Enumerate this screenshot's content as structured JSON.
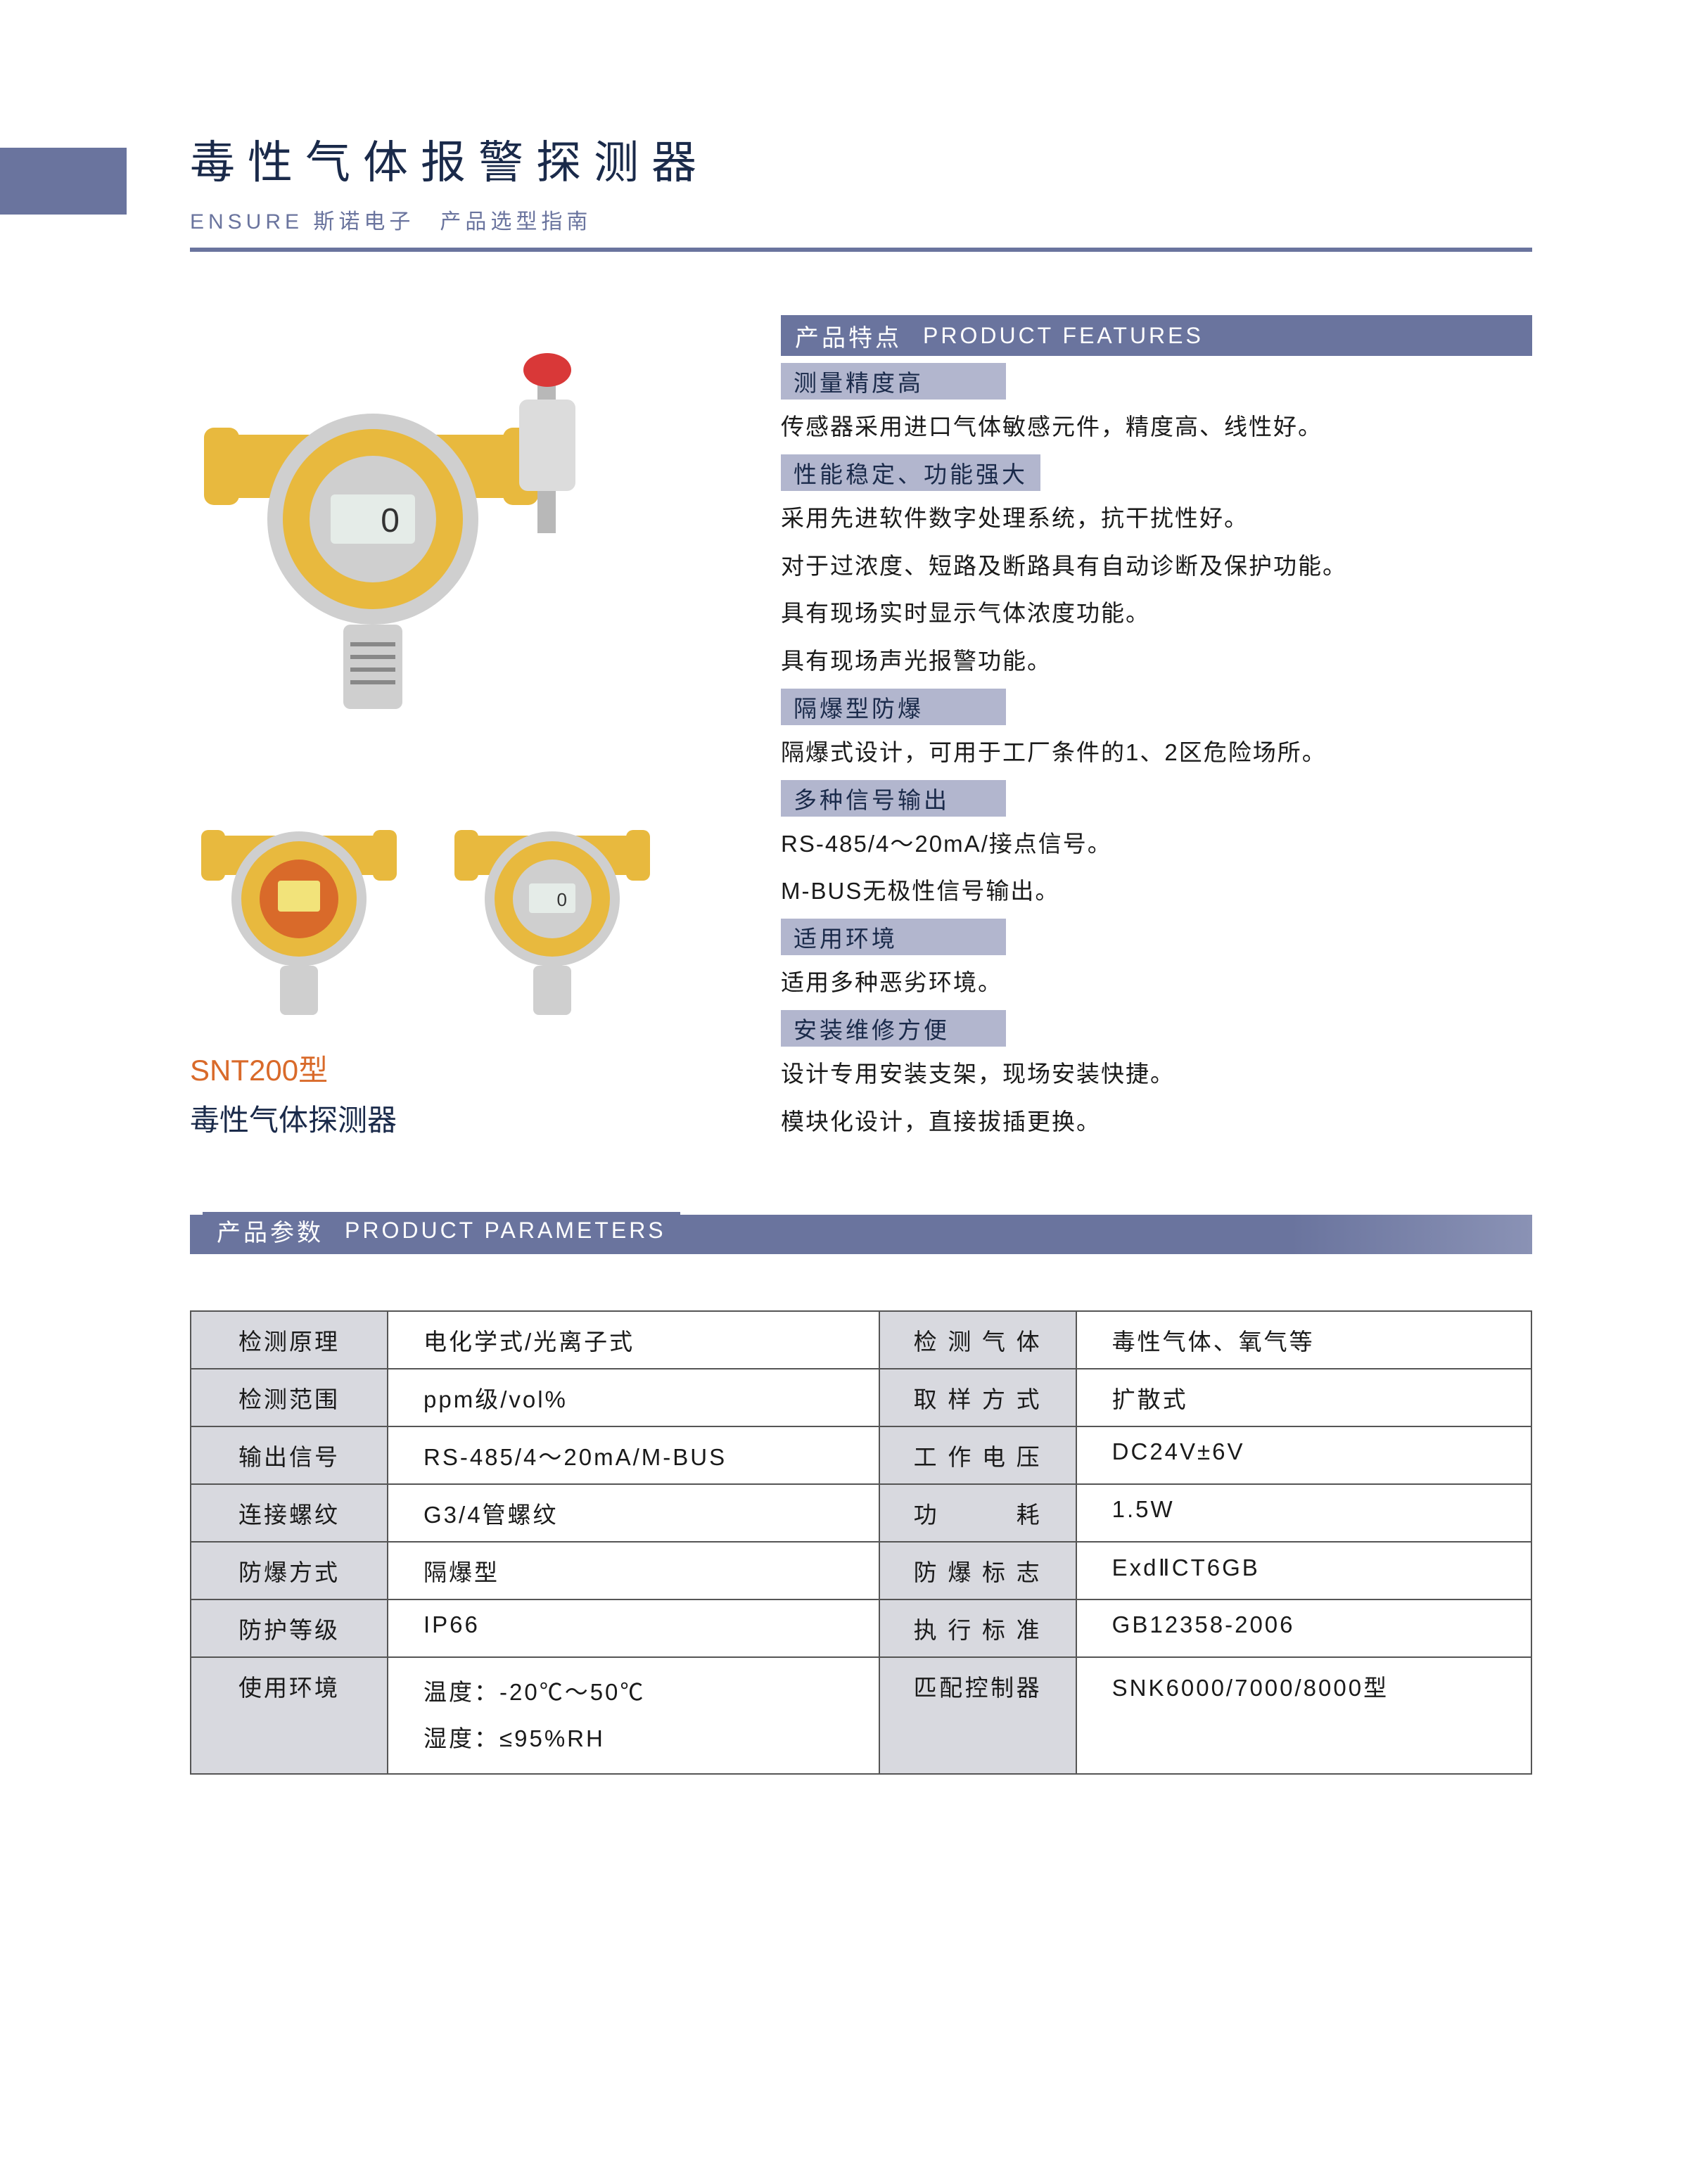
{
  "colors": {
    "accent": "#6a749e",
    "accent_light": "#b2b6ce",
    "table_header_bg": "#d8d9df",
    "text_dark": "#1a2a4a",
    "model_code": "#d96a2a",
    "device_yellow": "#e8b93e",
    "device_silver": "#cfcfcf",
    "alarm_red": "#d93838"
  },
  "header": {
    "title": "毒性气体报警探测器",
    "subtitle": "ENSURE 斯诺电子　产品选型指南"
  },
  "model": {
    "code": "SNT200型",
    "name": "毒性气体探测器"
  },
  "features": {
    "banner_cn": "产品特点",
    "banner_en": "PRODUCT  FEATURES",
    "groups": [
      {
        "heading": "测量精度高",
        "lines": [
          "传感器采用进口气体敏感元件，精度高、线性好。"
        ]
      },
      {
        "heading": "性能稳定、功能强大",
        "lines": [
          "采用先进软件数字处理系统，抗干扰性好。",
          "对于过浓度、短路及断路具有自动诊断及保护功能。",
          "具有现场实时显示气体浓度功能。",
          "具有现场声光报警功能。"
        ]
      },
      {
        "heading": "隔爆型防爆",
        "lines": [
          "隔爆式设计，可用于工厂条件的1、2区危险场所。"
        ]
      },
      {
        "heading": "多种信号输出",
        "lines": [
          "RS-485/4～20mA/接点信号。",
          "M-BUS无极性信号输出。"
        ]
      },
      {
        "heading": "适用环境",
        "lines": [
          "适用多种恶劣环境。"
        ]
      },
      {
        "heading": "安装维修方便",
        "lines": [
          "设计专用安装支架，现场安装快捷。",
          "模块化设计，直接拔插更换。"
        ]
      }
    ]
  },
  "parameters": {
    "banner_cn": "产品参数",
    "banner_en": "PRODUCT  PARAMETERS",
    "rows": [
      {
        "l1": "检测原理",
        "v1": "电化学式/光离子式",
        "l2": "检测气体",
        "v2": "毒性气体、氧气等"
      },
      {
        "l1": "检测范围",
        "v1": "ppm级/vol%",
        "l2": "取样方式",
        "v2": "扩散式"
      },
      {
        "l1": "输出信号",
        "v1": "RS-485/4～20mA/M-BUS",
        "l2": "工作电压",
        "v2": "DC24V±6V"
      },
      {
        "l1": "连接螺纹",
        "v1": "G3/4管螺纹",
        "l2": "功　耗",
        "v2": "1.5W"
      },
      {
        "l1": "防爆方式",
        "v1": "隔爆型",
        "l2": "防爆标志",
        "v2": "ExdⅡCT6GB"
      },
      {
        "l1": "防护等级",
        "v1": "IP66",
        "l2": "执行标准",
        "v2": "GB12358-2006"
      },
      {
        "l1": "使用环境",
        "v1": "温度：-20℃～50℃\n湿度：≤95%RH",
        "l2": "匹配控制器",
        "v2": "SNK6000/7000/8000型"
      }
    ]
  }
}
